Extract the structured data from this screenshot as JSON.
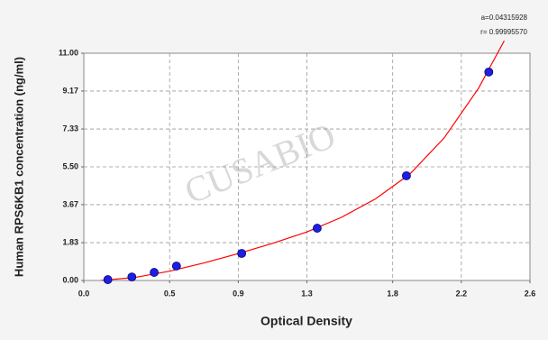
{
  "chart_data": {
    "type": "scatter",
    "annotations": [
      "a=0.04315928",
      "r= 0.99995570"
    ],
    "watermark": "CUSABIO",
    "xlabel": "Optical Density",
    "ylabel": "Human RPS6KB1 concentration (ng/ml)",
    "xlim": [
      0,
      2.6
    ],
    "xticks": [
      {
        "value": 0,
        "label": "0.0"
      },
      0.5,
      0.9,
      1.3,
      1.8,
      2.2,
      2.6
    ],
    "ylim": [
      0,
      11
    ],
    "yticks": [
      {
        "value": 0,
        "label": "0.00"
      },
      1.83,
      3.67,
      {
        "value": 5.5,
        "label": "5.50"
      },
      7.33,
      9.17,
      {
        "value": 11,
        "label": "11.00"
      }
    ],
    "grid": true,
    "series": [
      {
        "kind": "line",
        "color": "#ff0000",
        "x": [
          0.1,
          0.3,
          0.5,
          0.7,
          0.9,
          1.1,
          1.3,
          1.5,
          1.7,
          1.9,
          2.1,
          2.3,
          2.45
        ],
        "values": [
          0.0,
          0.15,
          0.45,
          0.85,
          1.3,
          1.8,
          2.35,
          3.05,
          3.95,
          5.15,
          6.9,
          9.3,
          11.6
        ]
      },
      {
        "kind": "scatter",
        "color": "#1f1fe0",
        "x": [
          0.14,
          0.28,
          0.41,
          0.54,
          0.92,
          1.36,
          1.88,
          2.36
        ],
        "values": [
          0.04,
          0.17,
          0.39,
          0.7,
          1.31,
          2.53,
          5.07,
          10.09
        ]
      }
    ]
  }
}
